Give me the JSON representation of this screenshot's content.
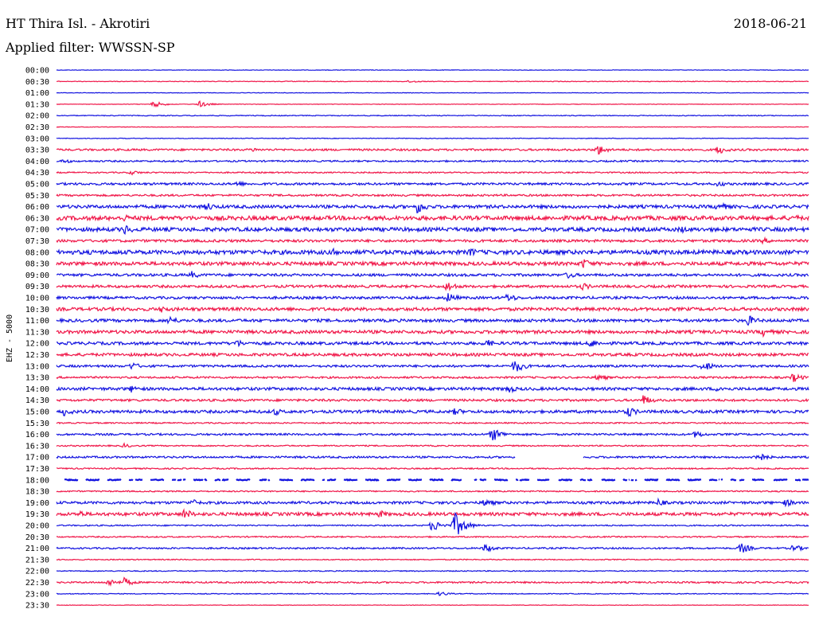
{
  "header": {
    "station": "HT Thira Isl. - Akrotiri",
    "date": "2018-06-21",
    "filter": "Applied filter: WWSSN-SP"
  },
  "chart_data": {
    "type": "line",
    "title": "HT Thira Isl. - Akrotiri",
    "subtitle": "Applied filter: WWSSN-SP",
    "ylabel": "EHZ - 5000",
    "xlabel": "",
    "grid": false,
    "colors": [
      "#1515e0",
      "#f0184a"
    ],
    "rows": [
      {
        "time": "00:00",
        "color": "#1515e0",
        "amplitude": 0.3,
        "events": []
      },
      {
        "time": "00:30",
        "color": "#f0184a",
        "amplitude": 0.4,
        "events": [
          {
            "pos": 0.47,
            "amp": 2
          }
        ]
      },
      {
        "time": "01:00",
        "color": "#1515e0",
        "amplitude": 0.3,
        "events": []
      },
      {
        "time": "01:30",
        "color": "#f0184a",
        "amplitude": 0.3,
        "events": [
          {
            "pos": 0.13,
            "amp": 4
          },
          {
            "pos": 0.19,
            "amp": 4
          }
        ]
      },
      {
        "time": "02:00",
        "color": "#1515e0",
        "amplitude": 0.5,
        "events": []
      },
      {
        "time": "02:30",
        "color": "#f0184a",
        "amplitude": 0.3,
        "events": []
      },
      {
        "time": "03:00",
        "color": "#1515e0",
        "amplitude": 0.4,
        "events": []
      },
      {
        "time": "03:30",
        "color": "#f0184a",
        "amplitude": 1.2,
        "events": [
          {
            "pos": 0.26,
            "amp": 3
          },
          {
            "pos": 0.72,
            "amp": 7
          },
          {
            "pos": 0.88,
            "amp": 6
          }
        ]
      },
      {
        "time": "04:00",
        "color": "#1515e0",
        "amplitude": 1.0,
        "events": [
          {
            "pos": 0.01,
            "amp": 3
          }
        ]
      },
      {
        "time": "04:30",
        "color": "#f0184a",
        "amplitude": 0.8,
        "events": [
          {
            "pos": 0.1,
            "amp": 3
          }
        ]
      },
      {
        "time": "05:00",
        "color": "#1515e0",
        "amplitude": 1.4,
        "events": [
          {
            "pos": 0.24,
            "amp": 4
          },
          {
            "pos": 0.88,
            "amp": 4
          }
        ]
      },
      {
        "time": "05:30",
        "color": "#f0184a",
        "amplitude": 1.2,
        "events": []
      },
      {
        "time": "06:00",
        "color": "#1515e0",
        "amplitude": 2.0,
        "events": [
          {
            "pos": 0.2,
            "amp": 6
          },
          {
            "pos": 0.48,
            "amp": 9
          },
          {
            "pos": 0.88,
            "amp": 7
          }
        ]
      },
      {
        "time": "06:30",
        "color": "#f0184a",
        "amplitude": 2.6,
        "events": [
          {
            "pos": 0.09,
            "amp": 5
          },
          {
            "pos": 0.98,
            "amp": 5
          }
        ]
      },
      {
        "time": "07:00",
        "color": "#1515e0",
        "amplitude": 2.4,
        "events": [
          {
            "pos": 0.09,
            "amp": 7
          },
          {
            "pos": 0.83,
            "amp": 5
          }
        ]
      },
      {
        "time": "07:30",
        "color": "#f0184a",
        "amplitude": 1.6,
        "events": [
          {
            "pos": 0.94,
            "amp": 4
          }
        ]
      },
      {
        "time": "08:00",
        "color": "#1515e0",
        "amplitude": 2.6,
        "events": [
          {
            "pos": 0.37,
            "amp": 6
          },
          {
            "pos": 0.55,
            "amp": 6
          }
        ]
      },
      {
        "time": "08:30",
        "color": "#f0184a",
        "amplitude": 2.2,
        "events": [
          {
            "pos": 0.7,
            "amp": 7
          }
        ]
      },
      {
        "time": "09:00",
        "color": "#1515e0",
        "amplitude": 1.6,
        "events": [
          {
            "pos": 0.18,
            "amp": 5
          },
          {
            "pos": 0.68,
            "amp": 5
          }
        ]
      },
      {
        "time": "09:30",
        "color": "#f0184a",
        "amplitude": 1.6,
        "events": [
          {
            "pos": 0.52,
            "amp": 7
          },
          {
            "pos": 0.7,
            "amp": 5
          }
        ]
      },
      {
        "time": "10:00",
        "color": "#1515e0",
        "amplitude": 1.6,
        "events": [
          {
            "pos": 0.52,
            "amp": 7
          },
          {
            "pos": 0.6,
            "amp": 6
          }
        ]
      },
      {
        "time": "10:30",
        "color": "#f0184a",
        "amplitude": 2.0,
        "events": [
          {
            "pos": 0.14,
            "amp": 5
          }
        ]
      },
      {
        "time": "11:00",
        "color": "#1515e0",
        "amplitude": 1.8,
        "events": [
          {
            "pos": 0.15,
            "amp": 6
          },
          {
            "pos": 0.92,
            "amp": 7
          }
        ]
      },
      {
        "time": "11:30",
        "color": "#f0184a",
        "amplitude": 2.0,
        "events": [
          {
            "pos": 0.94,
            "amp": 6
          }
        ]
      },
      {
        "time": "12:00",
        "color": "#1515e0",
        "amplitude": 1.8,
        "events": [
          {
            "pos": 0.24,
            "amp": 5
          },
          {
            "pos": 0.57,
            "amp": 6
          },
          {
            "pos": 0.71,
            "amp": 6
          }
        ]
      },
      {
        "time": "12:30",
        "color": "#f0184a",
        "amplitude": 1.8,
        "events": []
      },
      {
        "time": "13:00",
        "color": "#1515e0",
        "amplitude": 1.4,
        "events": [
          {
            "pos": 0.1,
            "amp": 5
          },
          {
            "pos": 0.61,
            "amp": 9
          },
          {
            "pos": 0.86,
            "amp": 7
          }
        ]
      },
      {
        "time": "13:30",
        "color": "#f0184a",
        "amplitude": 1.2,
        "events": [
          {
            "pos": 0.72,
            "amp": 5
          },
          {
            "pos": 0.98,
            "amp": 6
          }
        ]
      },
      {
        "time": "14:00",
        "color": "#1515e0",
        "amplitude": 1.8,
        "events": [
          {
            "pos": 0.1,
            "amp": 5
          },
          {
            "pos": 0.6,
            "amp": 6
          },
          {
            "pos": 0.88,
            "amp": 5
          }
        ]
      },
      {
        "time": "14:30",
        "color": "#f0184a",
        "amplitude": 1.4,
        "events": [
          {
            "pos": 0.78,
            "amp": 7
          }
        ]
      },
      {
        "time": "15:00",
        "color": "#1515e0",
        "amplitude": 1.8,
        "events": [
          {
            "pos": 0.01,
            "amp": 6
          },
          {
            "pos": 0.29,
            "amp": 5
          },
          {
            "pos": 0.53,
            "amp": 5
          },
          {
            "pos": 0.76,
            "amp": 7
          }
        ]
      },
      {
        "time": "15:30",
        "color": "#f0184a",
        "amplitude": 0.8,
        "events": []
      },
      {
        "time": "16:00",
        "color": "#1515e0",
        "amplitude": 1.2,
        "events": [
          {
            "pos": 0.58,
            "amp": 9
          },
          {
            "pos": 0.85,
            "amp": 5
          }
        ]
      },
      {
        "time": "16:30",
        "color": "#f0184a",
        "amplitude": 0.8,
        "events": [
          {
            "pos": 0.09,
            "amp": 3
          }
        ]
      },
      {
        "time": "17:00",
        "color": "#1515e0",
        "amplitude": 1.2,
        "events": [
          {
            "pos": 0.93,
            "amp": 8
          }
        ],
        "gaps": [
          [
            0.61,
            0.7
          ]
        ]
      },
      {
        "time": "17:30",
        "color": "#f0184a",
        "amplitude": 0.8,
        "events": []
      },
      {
        "time": "18:00",
        "color": "#1515e0",
        "amplitude": 0.6,
        "dashed": true,
        "events": []
      },
      {
        "time": "18:30",
        "color": "#f0184a",
        "amplitude": 0.8,
        "events": []
      },
      {
        "time": "19:00",
        "color": "#1515e0",
        "amplitude": 1.6,
        "events": [
          {
            "pos": 0.18,
            "amp": 5
          },
          {
            "pos": 0.57,
            "amp": 6
          },
          {
            "pos": 0.8,
            "amp": 5
          },
          {
            "pos": 0.97,
            "amp": 5
          }
        ]
      },
      {
        "time": "19:30",
        "color": "#f0184a",
        "amplitude": 2.0,
        "events": [
          {
            "pos": 0.03,
            "amp": 5
          },
          {
            "pos": 0.17,
            "amp": 7
          },
          {
            "pos": 0.43,
            "amp": 5
          }
        ]
      },
      {
        "time": "20:00",
        "color": "#1515e0",
        "amplitude": 0.8,
        "events": [
          {
            "pos": 0.5,
            "amp": 8
          },
          {
            "pos": 0.53,
            "amp": 16
          }
        ]
      },
      {
        "time": "20:30",
        "color": "#f0184a",
        "amplitude": 0.8,
        "events": []
      },
      {
        "time": "21:00",
        "color": "#1515e0",
        "amplitude": 1.0,
        "events": [
          {
            "pos": 0.57,
            "amp": 6
          },
          {
            "pos": 0.91,
            "amp": 7
          },
          {
            "pos": 0.98,
            "amp": 5
          }
        ]
      },
      {
        "time": "21:30",
        "color": "#f0184a",
        "amplitude": 0.6,
        "events": []
      },
      {
        "time": "22:00",
        "color": "#1515e0",
        "amplitude": 0.6,
        "events": []
      },
      {
        "time": "22:30",
        "color": "#f0184a",
        "amplitude": 1.0,
        "events": [
          {
            "pos": 0.07,
            "amp": 5
          },
          {
            "pos": 0.09,
            "amp": 6
          }
        ]
      },
      {
        "time": "23:00",
        "color": "#1515e0",
        "amplitude": 0.5,
        "events": [
          {
            "pos": 0.51,
            "amp": 3
          }
        ]
      },
      {
        "time": "23:30",
        "color": "#f0184a",
        "amplitude": 0.3,
        "events": []
      }
    ]
  }
}
